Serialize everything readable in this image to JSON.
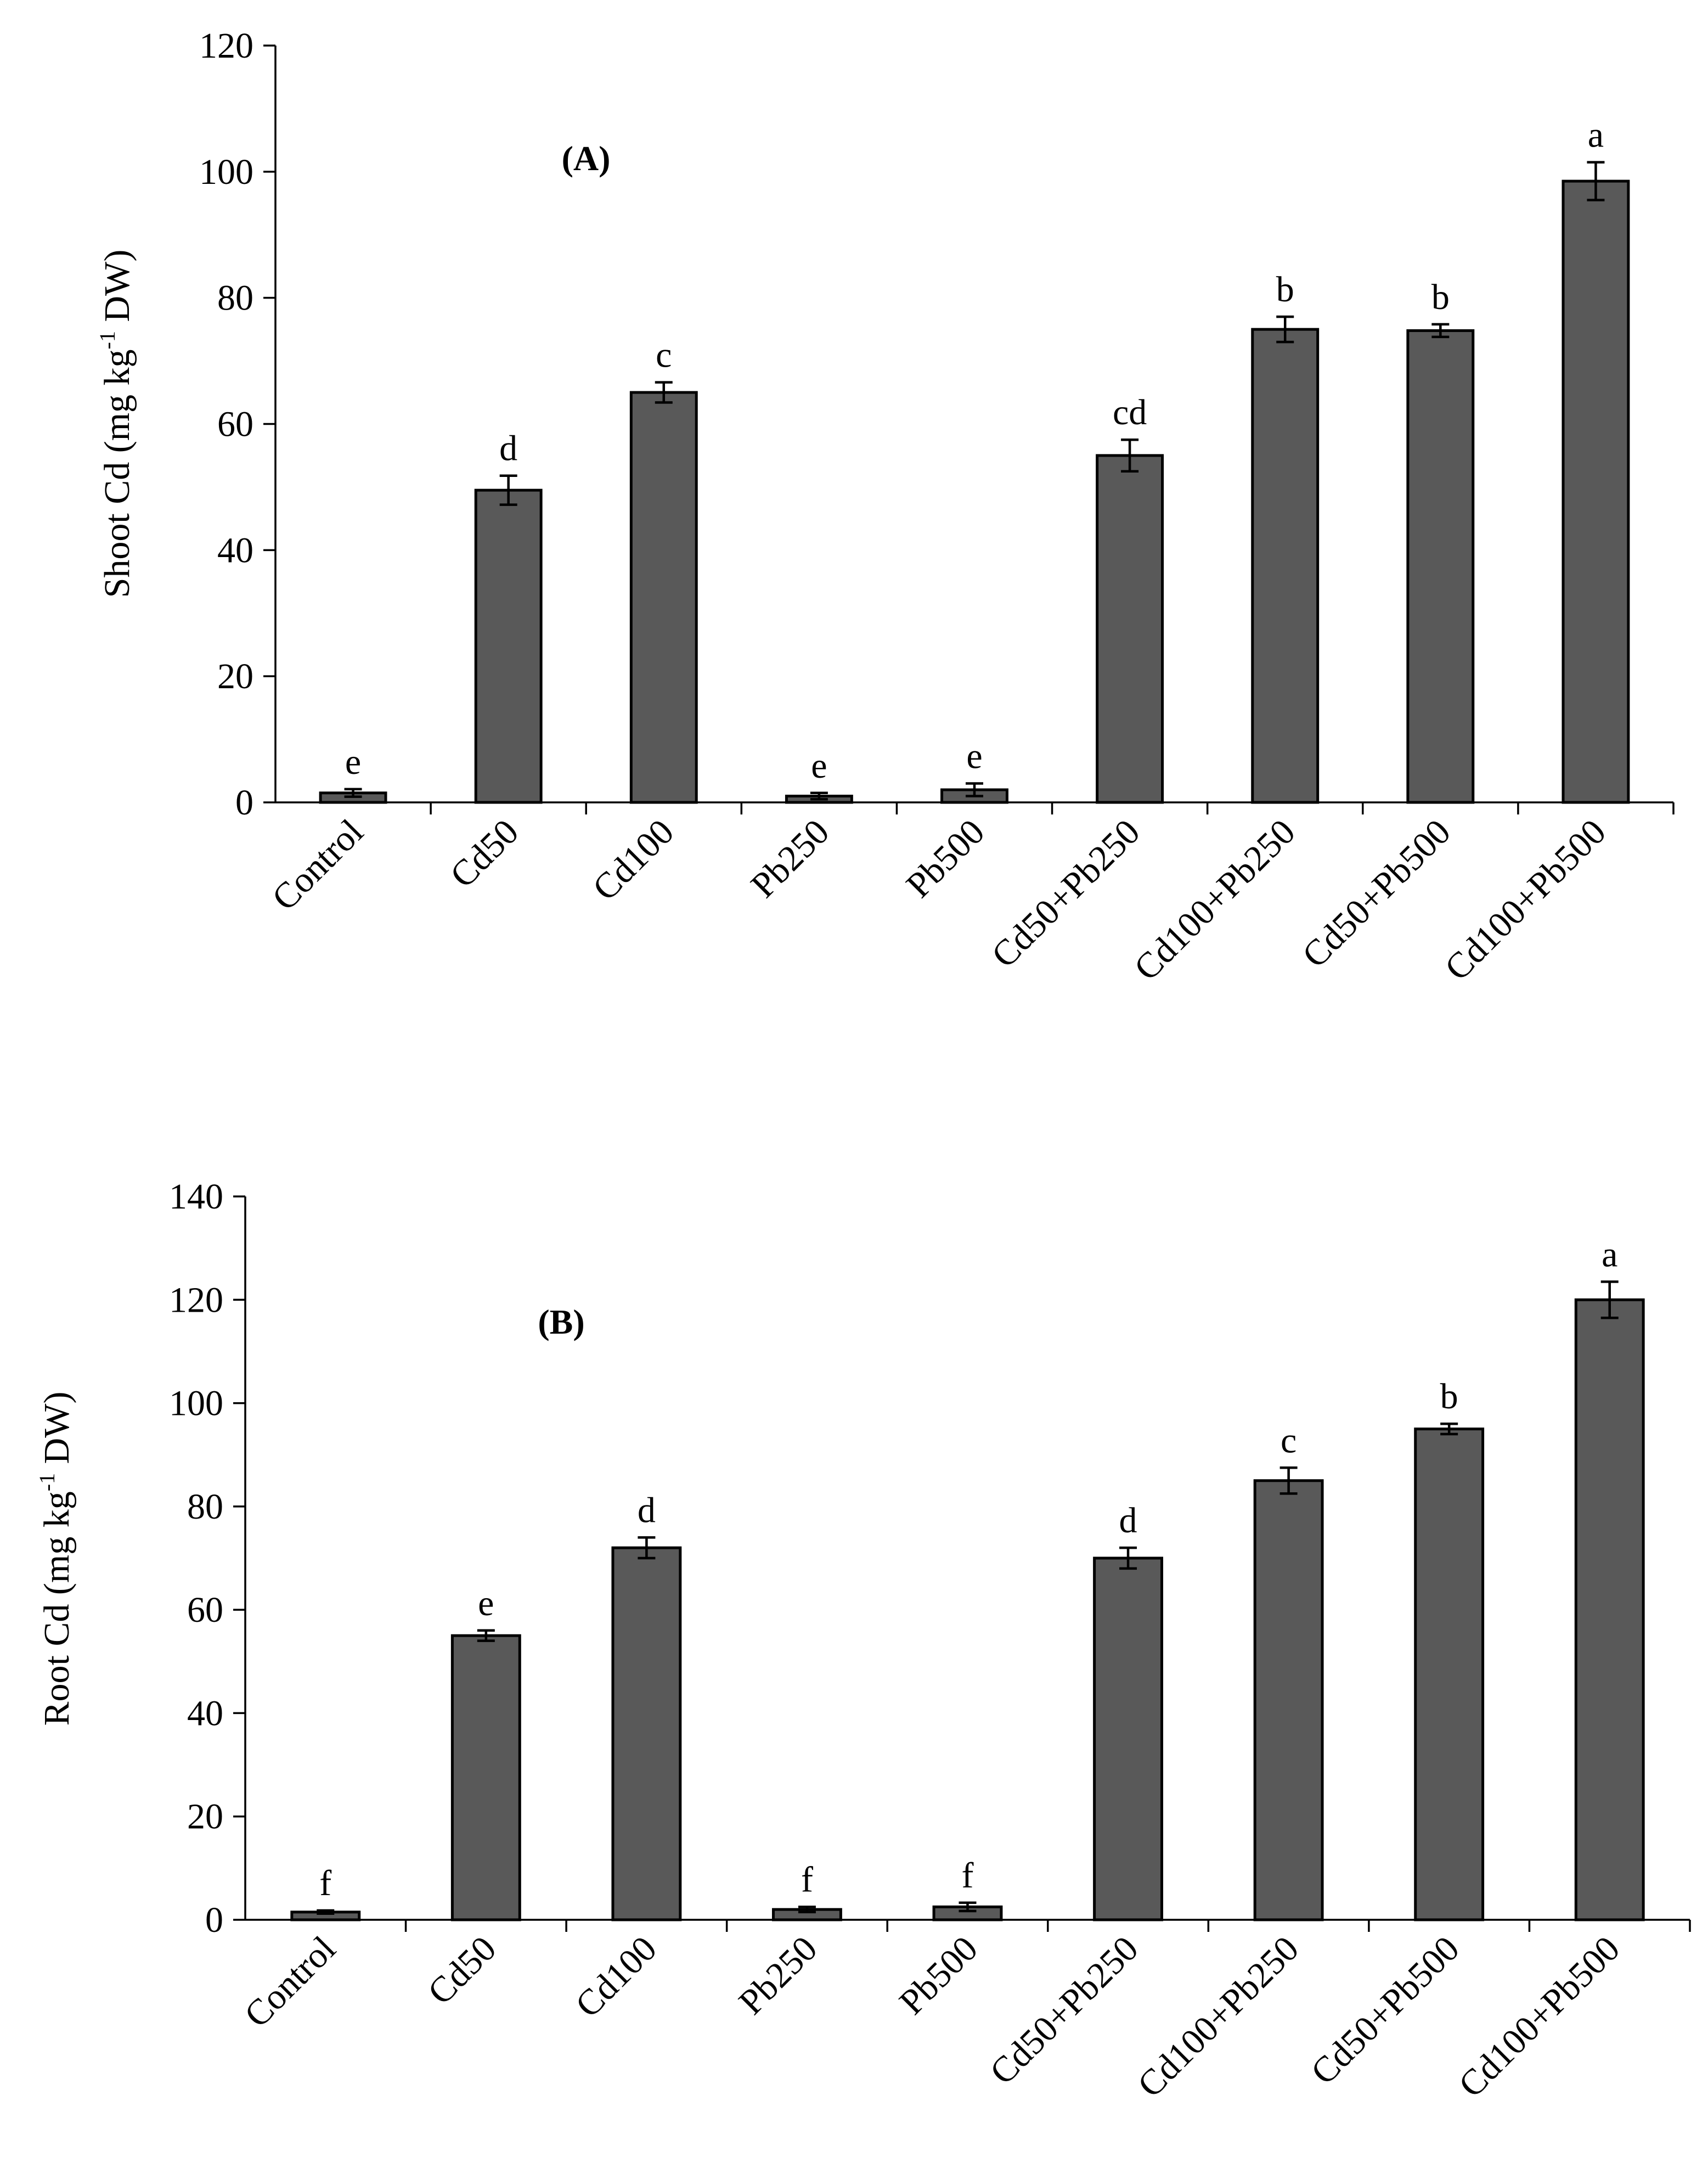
{
  "colors": {
    "bar_fill": "#595959",
    "bar_stroke": "#000000",
    "text": "#000000",
    "background": "#ffffff"
  },
  "chart_data": [
    {
      "type": "bar",
      "panel": "(A)",
      "ylabel": "Shoot Cd (mg kg-1 DW)",
      "ylabel_parts": {
        "before": "Shoot Cd (mg kg",
        "sup": "-1",
        "after": " DW)"
      },
      "ylim": [
        0,
        120
      ],
      "yticks": [
        0,
        20,
        40,
        60,
        80,
        100,
        120
      ],
      "grid": false,
      "categories": [
        "Control",
        "Cd50",
        "Cd100",
        "Pb250",
        "Pb500",
        "Cd50+Pb250",
        "Cd100+Pb250",
        "Cd50+Pb500",
        "Cd100+Pb500"
      ],
      "values": [
        1.5,
        49.5,
        65,
        1,
        2,
        55,
        75,
        74.8,
        98.5
      ],
      "errors": [
        0.6,
        2.3,
        1.6,
        0.5,
        1.0,
        2.5,
        2.0,
        1.0,
        3.0
      ],
      "letters": [
        "e",
        "d",
        "c",
        "e",
        "e",
        "cd",
        "b",
        "b",
        "a"
      ]
    },
    {
      "type": "bar",
      "panel": "(B)",
      "ylabel": "Root Cd (mg kg-1 DW)",
      "ylabel_parts": {
        "before": "Root Cd (mg kg",
        "sup": "-1",
        "after": " DW)"
      },
      "ylim": [
        0,
        140
      ],
      "yticks": [
        0,
        20,
        40,
        60,
        80,
        100,
        120,
        140
      ],
      "grid": false,
      "categories": [
        "Control",
        "Cd50",
        "Cd100",
        "Pb250",
        "Pb500",
        "Cd50+Pb250",
        "Cd100+Pb250",
        "Cd50+Pb500",
        "Cd100+Pb500"
      ],
      "values": [
        1.5,
        55,
        72,
        2,
        2.5,
        70,
        85,
        95,
        120
      ],
      "errors": [
        0.3,
        1.0,
        2.0,
        0.5,
        0.8,
        2.0,
        2.5,
        1.0,
        3.5
      ],
      "letters": [
        "f",
        "e",
        "d",
        "f",
        "f",
        "d",
        "c",
        "b",
        "a"
      ]
    }
  ]
}
